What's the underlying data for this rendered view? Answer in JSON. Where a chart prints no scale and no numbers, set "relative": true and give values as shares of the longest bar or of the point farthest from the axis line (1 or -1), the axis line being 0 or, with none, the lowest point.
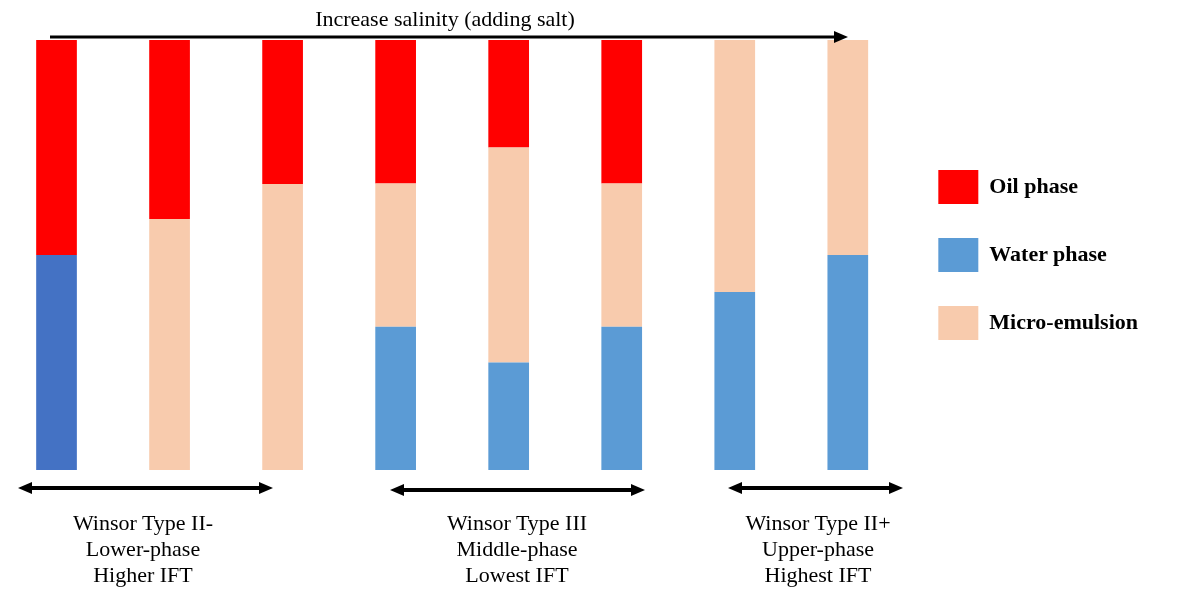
{
  "chart_data": {
    "type": "bar",
    "stacked": true,
    "relative": true,
    "tick_labels": false,
    "legend": "right",
    "categories": [
      null,
      null,
      null,
      null,
      null,
      null,
      null,
      null
    ],
    "series": [
      {
        "name": "Water phase",
        "color": "#5b9bd5",
        "colors": [
          "#4472c4",
          "#5b9bd5",
          "#5b9bd5",
          "#5b9bd5",
          "#5b9bd5",
          "#5b9bd5",
          "#5b9bd5",
          "#5b9bd5"
        ],
        "values": [
          0.5,
          0,
          0,
          0.333,
          0.25,
          0.333,
          0.414,
          0.5
        ]
      },
      {
        "name": "Micro-emulsion",
        "color": "#f8cbad",
        "values": [
          0,
          0.584,
          0.665,
          0.333,
          0.5,
          0.333,
          0.586,
          0.5
        ]
      },
      {
        "name": "Oil phase",
        "color": "#ff0000",
        "values": [
          0.5,
          0.416,
          0.335,
          0.334,
          0.25,
          0.334,
          0,
          0
        ]
      }
    ],
    "annotations": [
      "Increase salinity (adding salt)",
      "Winsor Type II-\nLower-phase\nHigher IFT",
      "Winsor Type III\nMiddle-phase\nLowest IFT",
      "Winsor Type II+\nUpper-phase\nHighest IFT"
    ]
  }
}
